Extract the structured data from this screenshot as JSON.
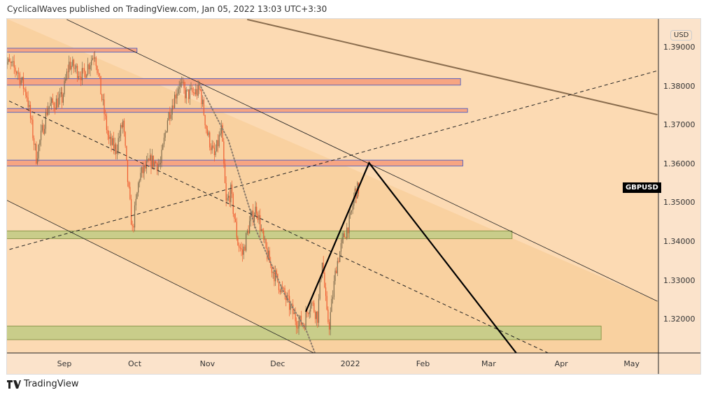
{
  "header": {
    "publisher": "CyclicalWaves published on TradingView.com, Jan 05, 2022 13:03 UTC+3:30"
  },
  "symbol": "GBPUSD",
  "currency": "USD",
  "brand": "TradingView",
  "colors": {
    "chart_bg": "#fcdab3",
    "channel_fill": "#f9d1a0",
    "up": "#7d6a4c",
    "down": "#ef5a2e",
    "red_zone": "#f7a582",
    "green_zone": "#c9cd8a",
    "zone_border": "#3a55c8"
  },
  "chart_data": {
    "type": "candlestick",
    "ylim": [
      1.3114,
      1.3974
    ],
    "xlim": [
      "2021-08-06",
      "2022-05-10"
    ],
    "price_ticks": [
      "1.39000",
      "1.38000",
      "1.37000",
      "1.36000",
      "1.35000",
      "1.34000",
      "1.33000",
      "1.32000"
    ],
    "price_tick_values": [
      1.39,
      1.38,
      1.37,
      1.36,
      1.35,
      1.34,
      1.33,
      1.32
    ],
    "time_ticks": [
      {
        "label": "Sep",
        "d": "2021-09-01"
      },
      {
        "label": "Oct",
        "d": "2021-10-01"
      },
      {
        "label": "Nov",
        "d": "2021-11-01"
      },
      {
        "label": "Dec",
        "d": "2021-12-01"
      },
      {
        "label": "2022",
        "d": "2022-01-01"
      },
      {
        "label": "Feb",
        "d": "2022-02-01"
      },
      {
        "label": "Mar",
        "d": "2022-03-01"
      },
      {
        "label": "Apr",
        "d": "2022-04-01"
      },
      {
        "label": "May",
        "d": "2022-05-01"
      }
    ],
    "closes": [
      [
        "2021-08-06",
        1.387
      ],
      [
        "2021-08-12",
        1.384
      ],
      [
        "2021-08-16",
        1.378
      ],
      [
        "2021-08-20",
        1.362
      ],
      [
        "2021-08-25",
        1.375
      ],
      [
        "2021-08-31",
        1.377
      ],
      [
        "2021-09-03",
        1.386
      ],
      [
        "2021-09-09",
        1.383
      ],
      [
        "2021-09-14",
        1.389
      ],
      [
        "2021-09-17",
        1.377
      ],
      [
        "2021-09-20",
        1.366
      ],
      [
        "2021-09-23",
        1.364
      ],
      [
        "2021-09-26",
        1.371
      ],
      [
        "2021-09-28",
        1.356
      ],
      [
        "2021-09-30",
        1.343
      ],
      [
        "2021-10-03",
        1.357
      ],
      [
        "2021-10-08",
        1.361
      ],
      [
        "2021-10-12",
        1.36
      ],
      [
        "2021-10-15",
        1.372
      ],
      [
        "2021-10-20",
        1.381
      ],
      [
        "2021-10-23",
        1.378
      ],
      [
        "2021-10-29",
        1.379
      ],
      [
        "2021-11-01",
        1.368
      ],
      [
        "2021-11-04",
        1.362
      ],
      [
        "2021-11-07",
        1.369
      ],
      [
        "2021-11-09",
        1.35
      ],
      [
        "2021-11-11",
        1.353
      ],
      [
        "2021-11-14",
        1.34
      ],
      [
        "2021-11-16",
        1.337
      ],
      [
        "2021-11-19",
        1.345
      ],
      [
        "2021-11-22",
        1.349
      ],
      [
        "2021-11-25",
        1.34
      ],
      [
        "2021-11-28",
        1.334
      ],
      [
        "2021-12-01",
        1.33
      ],
      [
        "2021-12-05",
        1.325
      ],
      [
        "2021-12-09",
        1.32
      ],
      [
        "2021-12-12",
        1.319
      ],
      [
        "2021-12-15",
        1.325
      ],
      [
        "2021-12-18",
        1.321
      ],
      [
        "2021-12-20",
        1.336
      ],
      [
        "2021-12-22",
        1.321
      ],
      [
        "2021-12-23",
        1.319
      ],
      [
        "2021-12-26",
        1.334
      ],
      [
        "2021-12-29",
        1.341
      ],
      [
        "2022-01-01",
        1.346
      ],
      [
        "2022-01-03",
        1.353
      ],
      [
        "2022-01-05",
        1.354
      ]
    ],
    "zones": [
      {
        "kind": "resistance",
        "from": "2021-08-06",
        "to": "2021-10-02",
        "top": 1.39,
        "bottom": 1.389
      },
      {
        "kind": "resistance",
        "from": "2021-08-06",
        "to": "2022-02-17",
        "top": 1.3822,
        "bottom": 1.3805
      },
      {
        "kind": "resistance",
        "from": "2021-08-06",
        "to": "2022-02-20",
        "top": 1.3745,
        "bottom": 1.3735
      },
      {
        "kind": "resistance",
        "from": "2021-08-06",
        "to": "2022-02-18",
        "top": 1.3612,
        "bottom": 1.3597
      },
      {
        "kind": "support",
        "from": "2021-08-06",
        "to": "2022-03-11",
        "top": 1.343,
        "bottom": 1.341
      },
      {
        "kind": "support",
        "from": "2021-08-06",
        "to": "2022-04-18",
        "top": 1.3185,
        "bottom": 1.315
      }
    ],
    "lines": [
      {
        "name": "channel-upper",
        "style": "solid",
        "w": 0.8,
        "c": "#222",
        "pts": [
          [
            "2021-09-02",
            1.3974
          ],
          [
            "2022-05-12",
            1.3249
          ]
        ]
      },
      {
        "name": "channel-lower",
        "style": "solid",
        "w": 0.8,
        "c": "#222",
        "pts": [
          [
            "2021-08-06",
            1.3513
          ],
          [
            "2021-12-17",
            1.3114
          ]
        ]
      },
      {
        "name": "long-trendline",
        "style": "solid",
        "w": 2,
        "c": "#8a6d4e",
        "pts": [
          [
            "2021-11-18",
            1.3974
          ],
          [
            "2022-05-12",
            1.3729
          ]
        ]
      },
      {
        "name": "dashed-rising",
        "style": "dashed",
        "w": 1,
        "c": "#222",
        "pts": [
          [
            "2021-08-06",
            1.3378
          ],
          [
            "2022-05-12",
            1.3842
          ]
        ]
      },
      {
        "name": "dashed-falling",
        "style": "dashed",
        "w": 1,
        "c": "#222",
        "pts": [
          [
            "2021-08-06",
            1.3771
          ],
          [
            "2022-03-27",
            1.3114
          ]
        ]
      },
      {
        "name": "dotted-curve",
        "style": "dotted",
        "w": 2,
        "c": "#8a7a6a",
        "pts": [
          [
            "2021-10-28",
            1.3815
          ],
          [
            "2021-11-10",
            1.3663
          ],
          [
            "2021-11-22",
            1.3429
          ],
          [
            "2021-12-04",
            1.3267
          ],
          [
            "2021-12-13",
            1.3177
          ],
          [
            "2021-12-17",
            1.3114
          ]
        ]
      },
      {
        "name": "projection-path",
        "style": "solid",
        "w": 2.2,
        "c": "#000",
        "pts": [
          [
            "2021-12-13",
            1.3222
          ],
          [
            "2022-01-09",
            1.3605
          ],
          [
            "2022-03-13",
            1.3114
          ]
        ]
      }
    ]
  }
}
